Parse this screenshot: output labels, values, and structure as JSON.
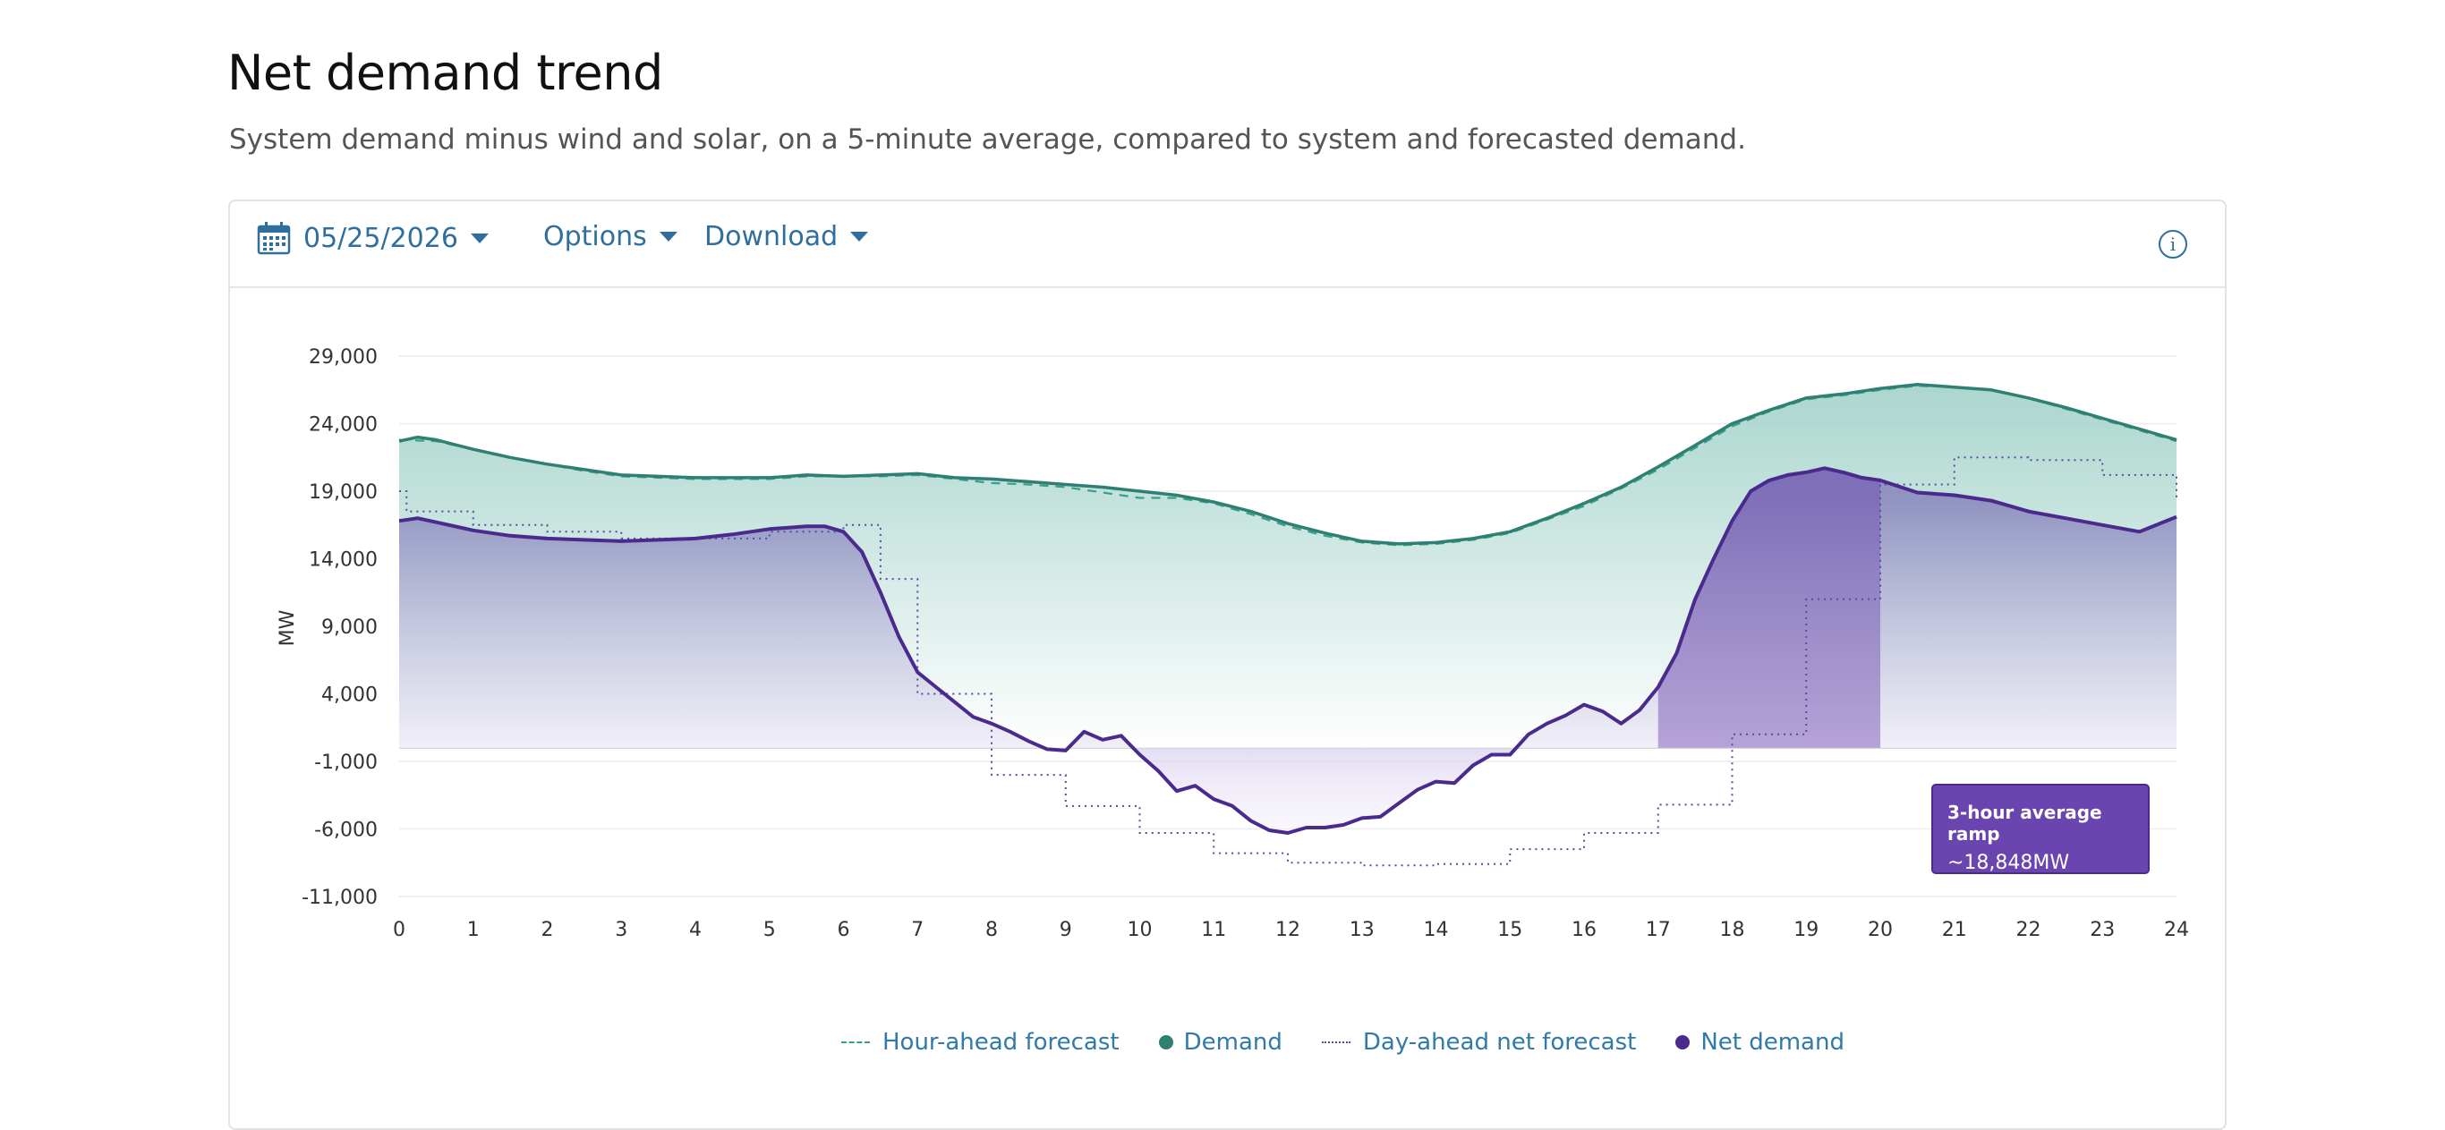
{
  "header": {
    "title": "Net demand trend",
    "subtitle": "System demand minus wind and solar, on a 5-minute average, compared to system and forecasted demand."
  },
  "toolbar": {
    "date": "05/25/2026",
    "options_label": "Options",
    "download_label": "Download",
    "info_symbol": "i",
    "calendar_icon": "calendar-icon",
    "info_icon": "info-icon"
  },
  "ramp": {
    "label": "3-hour average ramp",
    "value": "~18,848MW",
    "start_hour": 17,
    "end_hour": 20
  },
  "legend": [
    {
      "label": "Hour-ahead forecast",
      "style": "dashed",
      "color": "#3a9f8a"
    },
    {
      "label": "Demand",
      "style": "dot",
      "color": "#2f7f73"
    },
    {
      "label": "Day-ahead net forecast",
      "style": "dotted",
      "color": "#5a4aa0"
    },
    {
      "label": "Net demand",
      "style": "dot",
      "color": "#4a2a8c"
    }
  ],
  "colors": {
    "demand": "#2f7f73",
    "hour_ahead": "#3a9f8a",
    "net_demand": "#4a2a8c",
    "day_ahead_net": "#5a4aa0",
    "ramp_fill": "#6a45b0"
  },
  "chart_data": {
    "type": "line",
    "xlabel": "",
    "ylabel": "MW",
    "xlim": [
      0,
      24
    ],
    "ylim": [
      -11000,
      29000
    ],
    "xticks": [
      0,
      1,
      2,
      3,
      4,
      5,
      6,
      7,
      8,
      9,
      10,
      11,
      12,
      13,
      14,
      15,
      16,
      17,
      18,
      19,
      20,
      21,
      22,
      23,
      24
    ],
    "yticks": [
      29000,
      24000,
      19000,
      14000,
      9000,
      4000,
      -1000,
      -6000,
      -11000
    ],
    "ytick_labels": [
      "29,000",
      "24,000",
      "19,000",
      "14,000",
      "9,000",
      "4,000",
      "-1,000",
      "-6,000",
      "-11,000"
    ],
    "grid": true,
    "legend_position": "bottom",
    "series": [
      {
        "name": "Demand",
        "style": "solid",
        "x": [
          0,
          0.25,
          0.5,
          1,
          1.5,
          2,
          2.5,
          3,
          3.5,
          4,
          4.5,
          5,
          5.5,
          6,
          6.5,
          7,
          7.5,
          8,
          8.5,
          9,
          9.5,
          10,
          10.5,
          11,
          11.5,
          12,
          12.5,
          13,
          13.5,
          14,
          14.5,
          15,
          15.5,
          16,
          16.5,
          17,
          17.5,
          18,
          18.5,
          19,
          19.5,
          20,
          20.5,
          21,
          21.5,
          22,
          22.5,
          23,
          23.5,
          24
        ],
        "values": [
          22700,
          23000,
          22800,
          22100,
          21500,
          21000,
          20600,
          20200,
          20100,
          20000,
          20000,
          20000,
          20200,
          20100,
          20200,
          20300,
          20000,
          19900,
          19700,
          19500,
          19300,
          19000,
          18700,
          18200,
          17500,
          16600,
          15900,
          15300,
          15100,
          15200,
          15500,
          16000,
          17000,
          18100,
          19300,
          20800,
          22400,
          24000,
          25000,
          25900,
          26200,
          26600,
          26900,
          26700,
          26500,
          25900,
          25200,
          24400,
          23600,
          22800
        ]
      },
      {
        "name": "Hour-ahead forecast",
        "style": "dashed",
        "x": [
          0,
          0.5,
          1,
          1.5,
          2,
          2.5,
          3,
          3.5,
          4,
          4.5,
          5,
          5.5,
          6,
          6.5,
          7,
          7.5,
          8,
          8.5,
          9,
          9.5,
          10,
          10.5,
          11,
          11.5,
          12,
          12.5,
          13,
          13.5,
          14,
          14.5,
          15,
          15.5,
          16,
          16.5,
          17,
          17.5,
          18,
          18.5,
          19,
          19.5,
          20,
          20.5,
          21,
          21.5,
          22,
          22.5,
          23,
          23.5,
          24
        ],
        "values": [
          22800,
          22700,
          22100,
          21500,
          21000,
          20500,
          20100,
          20000,
          19900,
          19900,
          19900,
          20100,
          20100,
          20100,
          20200,
          19900,
          19600,
          19500,
          19300,
          18900,
          18500,
          18500,
          18100,
          17300,
          16400,
          15700,
          15200,
          15000,
          15100,
          15400,
          15900,
          16900,
          17900,
          19200,
          20600,
          22200,
          23800,
          24900,
          25800,
          26100,
          26500,
          26800,
          26700,
          26500,
          25900,
          25100,
          24300,
          23500,
          22700
        ]
      },
      {
        "name": "Net demand",
        "style": "solid",
        "x": [
          0,
          0.25,
          0.5,
          1,
          1.5,
          2,
          2.5,
          3,
          3.5,
          4,
          4.5,
          5,
          5.5,
          5.75,
          6,
          6.25,
          6.5,
          6.75,
          7,
          7.25,
          7.5,
          7.75,
          8,
          8.25,
          8.5,
          8.75,
          9,
          9.25,
          9.5,
          9.75,
          10,
          10.25,
          10.5,
          10.75,
          11,
          11.25,
          11.5,
          11.75,
          12,
          12.25,
          12.5,
          12.75,
          13,
          13.25,
          13.5,
          13.75,
          14,
          14.25,
          14.5,
          14.75,
          15,
          15.25,
          15.5,
          15.75,
          16,
          16.25,
          16.5,
          16.75,
          17,
          17.25,
          17.5,
          17.75,
          18,
          18.25,
          18.5,
          18.75,
          19,
          19.25,
          19.5,
          19.75,
          20,
          20.5,
          21,
          21.5,
          22,
          22.5,
          23,
          23.5,
          24
        ],
        "values": [
          16800,
          17000,
          16700,
          16100,
          15700,
          15500,
          15400,
          15300,
          15400,
          15500,
          15800,
          16200,
          16400,
          16400,
          16000,
          14500,
          11500,
          8200,
          5600,
          4500,
          3400,
          2300,
          1800,
          1200,
          500,
          -100,
          -200,
          1200,
          600,
          900,
          -500,
          -1700,
          -3200,
          -2800,
          -3800,
          -4300,
          -5400,
          -6100,
          -6300,
          -5900,
          -5900,
          -5700,
          -5200,
          -5100,
          -4100,
          -3100,
          -2500,
          -2600,
          -1300,
          -500,
          -500,
          1000,
          1800,
          2400,
          3200,
          2700,
          1800,
          2800,
          4500,
          7000,
          11000,
          14000,
          16800,
          19000,
          19800,
          20200,
          20400,
          20700,
          20400,
          20000,
          19800,
          18900,
          18700,
          18300,
          17500,
          17000,
          16500,
          16000,
          17100
        ]
      },
      {
        "name": "Day-ahead net forecast",
        "style": "dotted-step",
        "x": [
          0,
          0.1,
          1,
          2,
          3,
          4,
          5,
          6,
          6.5,
          7,
          8,
          9,
          10,
          11,
          12,
          13,
          14,
          15,
          16,
          17,
          18,
          19,
          20,
          21,
          22,
          23,
          24
        ],
        "values": [
          19000,
          17500,
          16500,
          16000,
          15500,
          15500,
          16000,
          16500,
          12500,
          4000,
          -2000,
          -4300,
          -6300,
          -7800,
          -8500,
          -8700,
          -8600,
          -7500,
          -6300,
          -4200,
          1000,
          11000,
          19500,
          21500,
          21300,
          20200,
          18500
        ]
      }
    ]
  }
}
